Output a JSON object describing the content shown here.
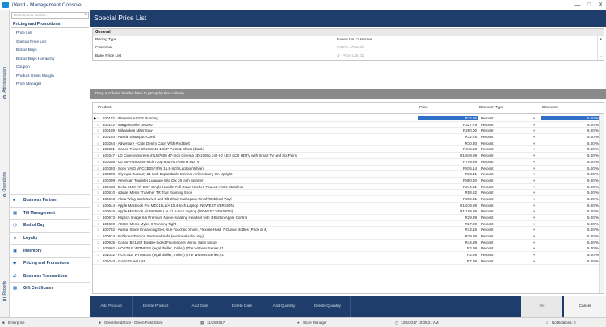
{
  "window": {
    "title": "iVend - Management Console"
  },
  "sidebar": {
    "search_placeholder": "Enter text to search...",
    "section_title": "Pricing and Promotions",
    "items": [
      "Price List",
      "Special Price List",
      "Bonus Buys",
      "Bonus Buys Hierarchy",
      "Coupon",
      "Product Gross Margin",
      "Price Manager"
    ],
    "modules": [
      "Business Partner",
      "Till Management",
      "End of Day",
      "Loyalty",
      "Inventory",
      "Pricing and Promotions",
      "Business Transactions",
      "Gift Certificates"
    ]
  },
  "side_tabs": {
    "administration": "Administration",
    "operations": "Operations",
    "reports": "Reports"
  },
  "page": {
    "title": "Special Price List"
  },
  "general": {
    "header": "General",
    "rows": [
      {
        "label": "Pricing Type",
        "value": "Based On Customer"
      },
      {
        "label": "Customer",
        "value": "C0015 - Donald"
      },
      {
        "label": "Base Price List",
        "value": "1 - Price List 01"
      }
    ]
  },
  "group_panel_text": "Drag a column header here to group by that column",
  "grid": {
    "headers": {
      "product": "Product",
      "price": "Price",
      "discount_type": "Discount Type",
      "discount": "Discount"
    },
    "rows": [
      {
        "product": "100113 - Womens ASICS Running",
        "price": "R12.85",
        "discount_type": "Percent",
        "discount": "5.00 %"
      },
      {
        "product": "100142 - Margaritaville DM200",
        "price": "R327.79",
        "discount_type": "Percent",
        "discount": "5.00 %"
      },
      {
        "product": "100189 - Milwaukee Miter Saw",
        "price": "R260.00",
        "discount_type": "Percent",
        "discount": "5.00 %"
      },
      {
        "product": "100184 - Aussie Shampoo-Cond",
        "price": "R12.78",
        "discount_type": "Percent",
        "discount": "5.00 %"
      },
      {
        "product": "100264 - Adventure - Cute Denim Capri With Red Belt",
        "price": "R10.30",
        "discount_type": "Percent",
        "discount": "5.00 %"
      },
      {
        "product": "100301 - Canon Power Shot SX40 12MP Point & Shoot (Black)",
        "price": "R446.10",
        "discount_type": "Percent",
        "discount": "5.00 %"
      },
      {
        "product": "100347 - LG Cinema Screen 47LM7600 47-Inch Cinema 3D 1080p 240 Hz LED LCD HDTV with Smart TV and Six Pairs",
        "price": "R1,849.99",
        "discount_type": "Percent",
        "discount": "5.00 %"
      },
      {
        "product": "100356 - LG 50PA4500 50-Inch 720p 600 Hz Plasma HDTV",
        "price": "R749.99",
        "discount_type": "Percent",
        "discount": "5.00 %"
      },
      {
        "product": "100393 - Sony VAIO VPCCB25FX/W 15.5-Inch Laptop (White)",
        "price": "R876.14",
        "discount_type": "Percent",
        "discount": "5.00 %"
      },
      {
        "product": "100398 - Olympia Tuscany 21 Inch Expandable Spinner Airline Carry-On Upright",
        "price": "R73.41",
        "discount_type": "Percent",
        "discount": "5.00 %"
      },
      {
        "product": "100399 - American Tourister Luggage Bite Dix 29 Inch Spinner",
        "price": "R880.30",
        "discount_type": "Percent",
        "discount": "5.00 %"
      },
      {
        "product": "100438 - Delta 9159-AR-DST Single Handle Pull-Down Kitchen Faucet, Arctic Stainless",
        "price": "R244.81",
        "discount_type": "Percent",
        "discount": "5.00 %"
      },
      {
        "product": "100510 - adidas Men's Thrasher TR Trail Running Shoe",
        "price": "R58.82",
        "discount_type": "Percent",
        "discount": "5.00 %"
      },
      {
        "product": "100613 - Alera Wing Back Swivel and Tilt Chair, Mahogany Finish/Oxblood Vinyl",
        "price": "R269.31",
        "discount_type": "Percent",
        "discount": "5.00 %"
      },
      {
        "product": "100644 - Apple MacBook Pro MD318LL/A 15.4-Inch Laptop (NEWEST VERSION)",
        "price": "R1,679.99",
        "discount_type": "Percent",
        "discount": "5.00 %"
      },
      {
        "product": "100645 - Apple MacBook Air MC969LL/A 11.6-Inch Laptop (NEWEST VERSION)",
        "price": "R1,199.99",
        "discount_type": "Percent",
        "discount": "5.00 %"
      },
      {
        "product": "100673 - Klipsch Image S4i Premium Noise-Isolating Headset with 3-Button Apple Control",
        "price": "R29.99",
        "discount_type": "Percent",
        "discount": "5.00 %"
      },
      {
        "product": "100690 - ASICS Men's Mylex II Running Tight",
        "price": "R27.20",
        "discount_type": "Percent",
        "discount": "5.00 %"
      },
      {
        "product": "100782 - Aussie Shine Enhancing Gel, Sun-Touched Shine, Flexible Hold, 7-Ounce Bottles (Pack of 4)",
        "price": "R13.15",
        "discount_type": "Percent",
        "discount": "5.00 %"
      },
      {
        "product": "100824 - Bobkona Trenton Sectional Sofa (sectional sofe only)",
        "price": "R29.99",
        "discount_type": "Percent",
        "discount": "5.00 %"
      },
      {
        "product": "100935 - Conair BE116T Double-Sided Fluorescent Mirror, Satin Nickel",
        "price": "R44.99",
        "discount_type": "Percent",
        "discount": "5.00 %"
      },
      {
        "product": "100992 - HOSTILE WITNESS (legal thriller, thriller) (The Witness Series,#1",
        "price": "R2.99",
        "discount_type": "Percent",
        "discount": "5.00 %"
      },
      {
        "product": "101032 - HOSTILE WITNESS (legal thriller, thriller) (The Witness Series,#1",
        "price": "R2.99",
        "discount_type": "Percent",
        "discount": "5.00 %"
      },
      {
        "product": "101040 - God's Guest List",
        "price": "R7.99",
        "discount_type": "Percent",
        "discount": "5.00 %"
      }
    ]
  },
  "toolbar": {
    "add_product": "Add Product",
    "delete_product": "Delete Product",
    "add_date": "Add Date",
    "delete_date": "Delete Date",
    "add_quantity": "Add Quantity",
    "delete_quantity": "Delete Quantity",
    "ok": "Ok",
    "cancel": "Cancel"
  },
  "status": {
    "company": "Enterprise",
    "store": "GreenFieldStore - Green Field Store",
    "date": "11/28/2017",
    "user": "Store Manager",
    "datetime": "12/4/2017 10:05:21 AM",
    "notifications": "Notifications: 0"
  },
  "colors": {
    "header_bg": "#1f3d6b",
    "selection": "#2f6fc6",
    "group_panel": "#8a8a8a"
  }
}
